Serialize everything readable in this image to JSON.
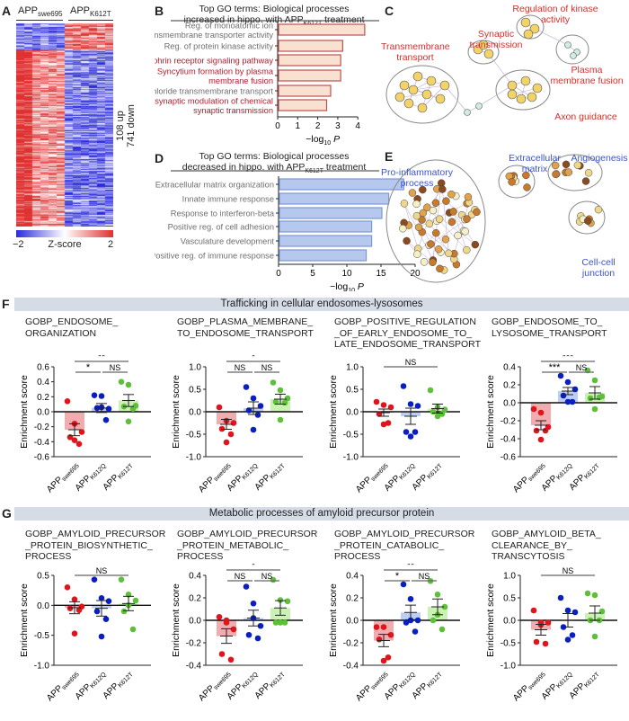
{
  "panel_letters": {
    "A": "A",
    "B": "B",
    "C": "C",
    "D": "D",
    "E": "E",
    "F": "F",
    "G": "G"
  },
  "heatmap": {
    "group1": {
      "main": "APP",
      "sub": "swe695"
    },
    "group2": {
      "main": "APP",
      "sub": "K612T"
    },
    "up_label": "108 up",
    "down_label": "741 down",
    "colorbar": {
      "min": "−2",
      "max": "2",
      "label": "Z-score",
      "low_color": "#2b2bdc",
      "high_color": "#e03030"
    }
  },
  "network_c": {
    "labels": [
      "Regulation of kinase activity",
      "Synaptic transmission",
      "Transmembrane transport",
      "Plasma membrane fusion",
      "Axon guidance"
    ],
    "label_color": "#d0312d"
  },
  "network_e": {
    "labels": [
      "Pro-inflammatory process",
      "Extracellular matrix",
      "Angiogenesis",
      "Cell-cell junction"
    ],
    "label_color": "#3a55c8"
  },
  "sections": {
    "F": "Trafficking in cellular endosomes-lysosomes",
    "G": "Metabolic processes of amyloid precursor protein"
  },
  "group_labels": [
    {
      "main": "APP",
      "sub": "swe695"
    },
    {
      "main": "APP",
      "sub": "K612Q"
    },
    {
      "main": "APP",
      "sub": "K612T"
    }
  ],
  "chart_data": [
    {
      "id": "B",
      "type": "bar",
      "orientation": "horizontal",
      "title_line1": "Top GO terms: Biological processes",
      "title_line2": "increased in hippo. with APP",
      "title_sub": "K612T",
      "title_end": " treatment",
      "xlabel": "−log",
      "xlabel_sub": "10",
      "xlabel_end": " P",
      "xlim": [
        0,
        4.5
      ],
      "xticks": [
        0,
        1,
        2,
        3,
        4
      ],
      "bar_color": "#f9e1d2",
      "edge_color": "#c0504d",
      "categories": [
        {
          "lines": [
            "Reg. of monoatomic ion",
            "transmembrane transporter activity"
          ],
          "highlight": false,
          "value": 4.3
        },
        {
          "lines": [
            "Reg. of protein kinase activity"
          ],
          "highlight": false,
          "value": 3.2
        },
        {
          "lines": [
            "Ephrin receptor signaling pathway"
          ],
          "highlight": true,
          "value": 3.1
        },
        {
          "lines": [
            "Syncytium formation by plasma",
            "membrane fusion"
          ],
          "highlight": true,
          "value": 3.1
        },
        {
          "lines": [
            "Chloride transmembrane transport"
          ],
          "highlight": false,
          "value": 2.6
        },
        {
          "lines": [
            "Presynaptic modulation of chemical",
            "synaptic transmission"
          ],
          "highlight": true,
          "value": 2.4
        }
      ]
    },
    {
      "id": "D",
      "type": "bar",
      "orientation": "horizontal",
      "title_line1": "Top GO terms: Biological processes",
      "title_line2": "decreased in hippo. with APP",
      "title_sub": "K612T",
      "title_end": " treatment",
      "xlabel": "−log",
      "xlabel_sub": "10",
      "xlabel_end": " P",
      "xlim": [
        0,
        20
      ],
      "xticks": [
        0,
        5,
        10,
        15,
        20
      ],
      "bar_color": "#b6c8ee",
      "edge_color": "#7d98d6",
      "categories": [
        {
          "lines": [
            "Extracellular matrix organization"
          ],
          "highlight": false,
          "value": 18.2
        },
        {
          "lines": [
            "Innate immune response"
          ],
          "highlight": false,
          "value": 16
        },
        {
          "lines": [
            "Response to interferon-beta"
          ],
          "highlight": false,
          "value": 15
        },
        {
          "lines": [
            "Positive reg. of cell adhesion"
          ],
          "highlight": false,
          "value": 13.5
        },
        {
          "lines": [
            "Vasculature development"
          ],
          "highlight": false,
          "value": 13.5
        },
        {
          "lines": [
            "Positive reg. of immune response"
          ],
          "highlight": false,
          "value": 12.7
        }
      ]
    },
    {
      "id": "F1",
      "type": "bar",
      "title": [
        "GOBP_ENDOSOME_",
        "ORGANIZATION"
      ],
      "ylabel": "Enrichment score",
      "ylim": [
        -0.6,
        0.6
      ],
      "yticks": [
        "-0.6",
        "-0.4",
        "-0.2",
        "0.0",
        "0.2",
        "0.4",
        "0.6"
      ],
      "groups": [
        {
          "mean": -0.24,
          "sem": 0.08,
          "points": [
            0.14,
            -0.16,
            -0.27,
            -0.34,
            -0.43,
            -0.38
          ]
        },
        {
          "mean": 0.05,
          "sem": 0.06,
          "points": [
            0.22,
            0.21,
            0.04,
            0.05,
            -0.11,
            0.06
          ]
        },
        {
          "mean": 0.15,
          "sem": 0.08,
          "points": [
            0.4,
            0.36,
            0.08,
            0.07,
            0.04,
            -0.13
          ]
        }
      ],
      "significance": [
        {
          "from": 0,
          "to": 1,
          "label": "*"
        },
        {
          "from": 1,
          "to": 2,
          "label": "NS"
        },
        {
          "from": 0,
          "to": 2,
          "label": "**"
        }
      ]
    },
    {
      "id": "F2",
      "type": "bar",
      "title": [
        "GOBP_PLASMA_MEMBRANE_",
        "TO_ENDOSOME_TRANSPORT"
      ],
      "ylabel": "Enrichment score",
      "ylim": [
        -1,
        1
      ],
      "yticks": [
        "-1.0",
        "-0.5",
        "0.0",
        "0.5",
        "1.0"
      ],
      "groups": [
        {
          "mean": -0.28,
          "sem": 0.11,
          "points": [
            0.1,
            -0.2,
            -0.25,
            -0.38,
            -0.5,
            -0.68
          ]
        },
        {
          "mean": 0.08,
          "sem": 0.14,
          "points": [
            0.55,
            0.3,
            0.13,
            0.03,
            -0.07,
            -0.4
          ]
        },
        {
          "mean": 0.28,
          "sem": 0.11,
          "points": [
            0.65,
            0.48,
            0.3,
            0.22,
            0.2,
            -0.18
          ]
        }
      ],
      "significance": [
        {
          "from": 0,
          "to": 1,
          "label": "NS"
        },
        {
          "from": 1,
          "to": 2,
          "label": "NS"
        },
        {
          "from": 0,
          "to": 2,
          "label": "*"
        }
      ]
    },
    {
      "id": "F3",
      "type": "bar",
      "title": [
        "GOBP_POSITIVE_REGULATION",
        "_OF_EARLY_ENDOSOME_TO_",
        "LATE_ENDOSOME_TRANSPORT"
      ],
      "ylabel": "Enrichment score",
      "ylim": [
        -1,
        1
      ],
      "yticks": [
        "-1.0",
        "-0.5",
        "0.0",
        "0.5",
        "1.0"
      ],
      "groups": [
        {
          "mean": -0.02,
          "sem": 0.08,
          "points": [
            0.22,
            0.15,
            0.1,
            -0.05,
            -0.25,
            -0.28
          ]
        },
        {
          "mean": -0.1,
          "sem": 0.18,
          "points": [
            0.57,
            0.17,
            0.13,
            -0.45,
            -0.45,
            -0.55
          ]
        },
        {
          "mean": 0.07,
          "sem": 0.1,
          "points": [
            0.48,
            0.1,
            0.05,
            0.0,
            -0.05,
            -0.1
          ]
        }
      ],
      "significance": [
        {
          "from": 0,
          "to": 2,
          "label": "NS"
        }
      ]
    },
    {
      "id": "F4",
      "type": "bar",
      "title": [
        "GOBP_ENDOSOME_TO_",
        "LYSOSOME_TRANSPORT"
      ],
      "ylabel": "Enrichment score",
      "ylim": [
        -0.6,
        0.4
      ],
      "yticks": [
        "-0.6",
        "-0.4",
        "-0.2",
        "0.0",
        "0.2",
        "0.4"
      ],
      "groups": [
        {
          "mean": -0.25,
          "sem": 0.05,
          "points": [
            -0.07,
            -0.11,
            -0.27,
            -0.31,
            -0.31,
            -0.41
          ]
        },
        {
          "mean": 0.13,
          "sem": 0.04,
          "points": [
            0.3,
            0.23,
            0.15,
            0.08,
            0.01,
            0.01
          ]
        },
        {
          "mean": 0.11,
          "sem": 0.07,
          "points": [
            0.36,
            0.25,
            0.07,
            0.05,
            0.06,
            -0.07
          ]
        }
      ],
      "significance": [
        {
          "from": 0,
          "to": 1,
          "label": "***"
        },
        {
          "from": 1,
          "to": 2,
          "label": "NS"
        },
        {
          "from": 0,
          "to": 2,
          "label": "***"
        }
      ]
    },
    {
      "id": "G1",
      "type": "bar",
      "title": [
        "GOBP_AMYLOID_PRECURSOR",
        "_PROTEIN_BIOSYNTHETIC_",
        "PROCESS"
      ],
      "ylabel": "Enrichment score",
      "ylim": [
        -1,
        0.5
      ],
      "yticks": [
        "-1.0",
        "-0.5",
        "0.0",
        "0.5"
      ],
      "groups": [
        {
          "mean": -0.04,
          "sem": 0.1,
          "points": [
            0.3,
            0.1,
            -0.02,
            -0.05,
            -0.08,
            -0.47
          ]
        },
        {
          "mean": -0.05,
          "sem": 0.13,
          "points": [
            0.43,
            0.12,
            0.07,
            -0.1,
            -0.23,
            -0.52
          ]
        },
        {
          "mean": 0.03,
          "sem": 0.12,
          "points": [
            0.43,
            0.18,
            0.08,
            -0.1,
            -0.4,
            0.0
          ]
        }
      ],
      "significance": [
        {
          "from": 0,
          "to": 2,
          "label": "NS"
        }
      ]
    },
    {
      "id": "G2",
      "type": "bar",
      "title": [
        "GOBP_AMYLOID_PRECURSOR",
        "_PROTEIN_METABOLIC_",
        "PROCESS"
      ],
      "ylabel": "Enrichment score",
      "ylim": [
        -0.4,
        0.4
      ],
      "yticks": [
        "-0.4",
        "-0.2",
        "0.0",
        "0.2",
        "0.4"
      ],
      "groups": [
        {
          "mean": -0.14,
          "sem": 0.065,
          "points": [
            0.03,
            0.0,
            -0.08,
            -0.3,
            -0.35,
            -0.02
          ]
        },
        {
          "mean": 0.02,
          "sem": 0.07,
          "points": [
            0.3,
            0.15,
            -0.05,
            -0.13,
            -0.16,
            0.02
          ]
        },
        {
          "mean": 0.11,
          "sem": 0.065,
          "points": [
            0.36,
            0.18,
            0.17,
            -0.02,
            -0.02,
            -0.02
          ]
        }
      ],
      "significance": [
        {
          "from": 0,
          "to": 1,
          "label": "NS"
        },
        {
          "from": 1,
          "to": 2,
          "label": "NS"
        },
        {
          "from": 0,
          "to": 2,
          "label": "*"
        }
      ]
    },
    {
      "id": "G3",
      "type": "bar",
      "title": [
        "GOBP_AMYLOID_PRECURSOR",
        "_PROTEIN_CATABOLIC_",
        "PROCESS"
      ],
      "ylabel": "Enrichment score",
      "ylim": [
        -0.4,
        0.4
      ],
      "yticks": [
        "-0.4",
        "-0.2",
        "0.0",
        "0.2",
        "0.4"
      ],
      "groups": [
        {
          "mean": -0.18,
          "sem": 0.055,
          "points": [
            -0.06,
            -0.06,
            -0.13,
            -0.17,
            -0.33,
            -0.36
          ]
        },
        {
          "mean": 0.07,
          "sem": 0.065,
          "points": [
            0.32,
            0.19,
            0.0,
            -0.02,
            -0.1,
            0.0
          ]
        },
        {
          "mean": 0.12,
          "sem": 0.07,
          "points": [
            0.35,
            0.23,
            0.12,
            0.0,
            -0.08,
            0.05
          ]
        }
      ],
      "significance": [
        {
          "from": 0,
          "to": 1,
          "label": "*"
        },
        {
          "from": 1,
          "to": 2,
          "label": "NS"
        },
        {
          "from": 0,
          "to": 2,
          "label": "**"
        }
      ]
    },
    {
      "id": "G4",
      "type": "bar",
      "title": [
        "GOBP_AMYLOID_BETA_",
        "CLEARANCE_BY_",
        "TRANSCYTOSIS"
      ],
      "ylabel": "Enrichment score",
      "ylim": [
        -1,
        1
      ],
      "yticks": [
        "-1.0",
        "-0.5",
        "0.0",
        "0.5",
        "1.0"
      ],
      "groups": [
        {
          "mean": -0.21,
          "sem": 0.12,
          "points": [
            0.22,
            -0.05,
            -0.05,
            -0.48,
            -0.52,
            -0.1
          ]
        },
        {
          "mean": 0.0,
          "sem": 0.15,
          "points": [
            0.5,
            0.22,
            0.18,
            -0.15,
            -0.33,
            -0.43
          ]
        },
        {
          "mean": 0.16,
          "sem": 0.16,
          "points": [
            0.6,
            0.56,
            0.2,
            0.0,
            -0.0,
            -0.36
          ]
        }
      ],
      "significance": [
        {
          "from": 0,
          "to": 2,
          "label": "NS"
        }
      ]
    }
  ],
  "colors": {
    "point": [
      "#e0141c",
      "#0a1fc0",
      "#5fbf3a"
    ],
    "bar": [
      "#f0a3a6",
      "#b7c9f2",
      "#c5f0ad"
    ]
  }
}
